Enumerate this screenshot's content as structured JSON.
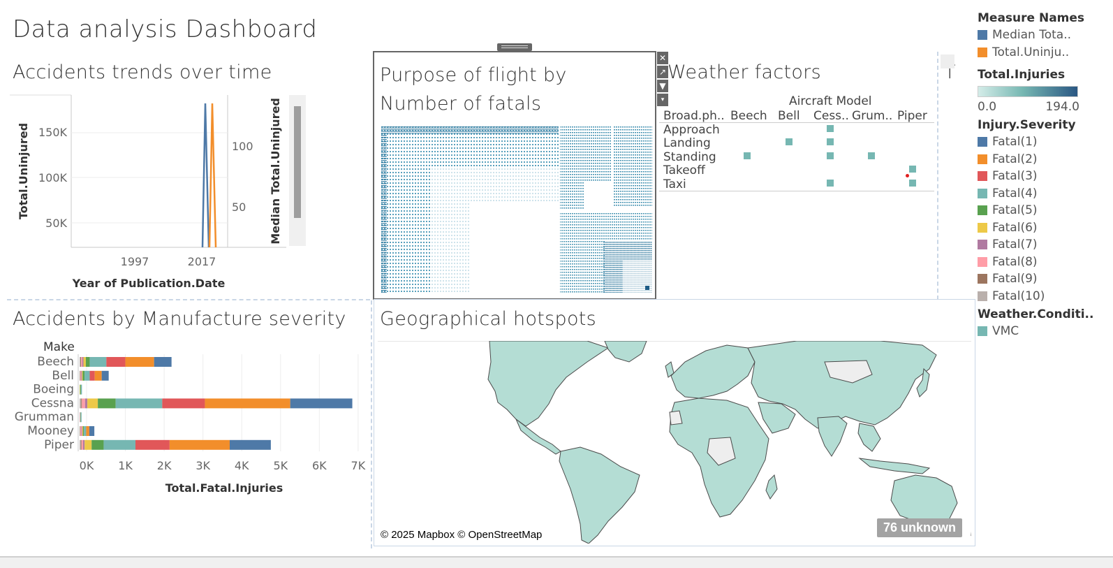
{
  "dashboard": {
    "title": "Data analysis Dashboard"
  },
  "trends": {
    "title": "Accidents trends over time",
    "y_left_label": "Total.Uninjured",
    "y_right_label": "Median Total.Uninjured",
    "x_label": "Year of Publication.Date",
    "left_ticks": [
      "150K",
      "100K",
      "50K"
    ],
    "right_ticks": [
      "100",
      "50"
    ],
    "x_ticks": [
      "1997",
      "2017"
    ]
  },
  "purpose": {
    "title": "Purpose of flight by Number of fatals"
  },
  "weather": {
    "title": "Weather factors",
    "column_header": "Aircraft Model",
    "row_header": "Broad.ph..",
    "columns": [
      "Beech",
      "Bell",
      "Cess..",
      "Grum..",
      "Piper"
    ],
    "rows": [
      "Approach",
      "Landing",
      "Standing",
      "Takeoff",
      "Taxi"
    ],
    "marks": [
      {
        "row": "Approach",
        "col": "Cess.."
      },
      {
        "row": "Landing",
        "col": "Bell"
      },
      {
        "row": "Landing",
        "col": "Cess.."
      },
      {
        "row": "Standing",
        "col": "Beech"
      },
      {
        "row": "Standing",
        "col": "Cess.."
      },
      {
        "row": "Standing",
        "col": "Grum.."
      },
      {
        "row": "Takeoff",
        "col": "Piper"
      },
      {
        "row": "Taxi",
        "col": "Cess.."
      },
      {
        "row": "Taxi",
        "col": "Piper"
      }
    ],
    "mark_color": "#76b7b2"
  },
  "partial_sheet": {
    "label": "T"
  },
  "manufacture": {
    "title": "Accidents by Manufacture severity",
    "row_header": "Make",
    "x_label": "Total.Fatal.Injuries",
    "x_ticks": [
      "0K",
      "1K",
      "2K",
      "3K",
      "4K",
      "5K",
      "6K",
      "7K"
    ]
  },
  "geo": {
    "title": "Geographical hotspots",
    "attribution": "© 2025 Mapbox © OpenStreetMap",
    "unknown_badge": "76 unknown",
    "land_color": "#b4ddd4",
    "nodata_color": "#eeeeee"
  },
  "legend": {
    "measure_names": {
      "title": "Measure Names",
      "items": [
        {
          "label": "Median Tota..",
          "color": "#4e79a7"
        },
        {
          "label": "Total.Uninju..",
          "color": "#f28e2b"
        }
      ]
    },
    "total_injuries": {
      "title": "Total.Injuries",
      "min": "0.0",
      "max": "194.0",
      "color_low": "#d4ece8",
      "color_high": "#2a5783"
    },
    "injury_severity": {
      "title": "Injury.Severity",
      "items": [
        {
          "label": "Fatal(1)",
          "color": "#4e79a7"
        },
        {
          "label": "Fatal(2)",
          "color": "#f28e2b"
        },
        {
          "label": "Fatal(3)",
          "color": "#e15759"
        },
        {
          "label": "Fatal(4)",
          "color": "#76b7b2"
        },
        {
          "label": "Fatal(5)",
          "color": "#59a14f"
        },
        {
          "label": "Fatal(6)",
          "color": "#edc948"
        },
        {
          "label": "Fatal(7)",
          "color": "#b07aa1"
        },
        {
          "label": "Fatal(8)",
          "color": "#ff9da7"
        },
        {
          "label": "Fatal(9)",
          "color": "#9c755f"
        },
        {
          "label": "Fatal(10)",
          "color": "#bab0ac"
        }
      ]
    },
    "weather_condition": {
      "title": "Weather.Conditi..",
      "items": [
        {
          "label": "VMC",
          "color": "#76b7b2"
        }
      ]
    }
  },
  "chart_data": [
    {
      "type": "line",
      "title": "Accidents trends over time",
      "xlabel": "Year of Publication.Date",
      "ylabel": "Total.Uninjured",
      "y2label": "Median Total.Uninjured",
      "ylim": [
        0,
        190000
      ],
      "y2lim": [
        0,
        145
      ],
      "series": [
        {
          "name": "Median Total.Uninjured",
          "axis": "right",
          "x": [
            2013,
            2015,
            2017
          ],
          "values": [
            0,
            140,
            0
          ]
        },
        {
          "name": "Total.Uninjured",
          "axis": "left",
          "x": [
            2017,
            2019,
            2021
          ],
          "values": [
            0,
            180000,
            0
          ]
        }
      ]
    },
    {
      "type": "bar",
      "orientation": "horizontal",
      "stacked": true,
      "title": "Accidents by Manufacture severity",
      "xlabel": "Total.Fatal.Injuries",
      "ylabel": "Make",
      "xlim": [
        0,
        7200
      ],
      "categories": [
        "Beech",
        "Bell",
        "Boeing",
        "Cessna",
        "Grumman",
        "Mooney",
        "Piper"
      ],
      "series": [
        {
          "name": "Fatal(10)",
          "values": [
            20,
            10,
            0,
            40,
            5,
            10,
            30
          ]
        },
        {
          "name": "Fatal(9)",
          "values": [
            20,
            10,
            0,
            20,
            5,
            10,
            20
          ]
        },
        {
          "name": "Fatal(8)",
          "values": [
            30,
            20,
            0,
            80,
            5,
            30,
            40
          ]
        },
        {
          "name": "Fatal(7)",
          "values": [
            30,
            20,
            0,
            60,
            5,
            20,
            40
          ]
        },
        {
          "name": "Fatal(6)",
          "values": [
            60,
            20,
            10,
            270,
            0,
            20,
            180
          ]
        },
        {
          "name": "Fatal(5)",
          "values": [
            100,
            50,
            20,
            460,
            10,
            20,
            310
          ]
        },
        {
          "name": "Fatal(4)",
          "values": [
            430,
            130,
            30,
            1200,
            20,
            60,
            820
          ]
        },
        {
          "name": "Fatal(3)",
          "values": [
            490,
            130,
            0,
            1100,
            0,
            0,
            880
          ]
        },
        {
          "name": "Fatal(2)",
          "values": [
            740,
            180,
            0,
            2200,
            0,
            80,
            1550
          ]
        },
        {
          "name": "Fatal(1)",
          "values": [
            450,
            180,
            0,
            1600,
            0,
            130,
            1060
          ]
        }
      ]
    }
  ]
}
